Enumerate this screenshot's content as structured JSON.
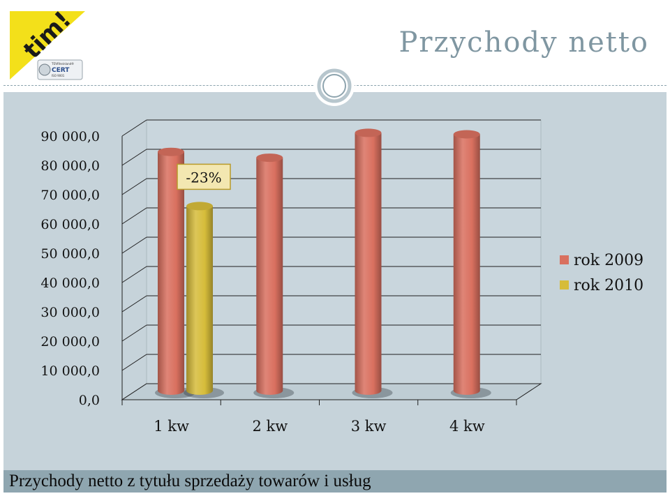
{
  "slide": {
    "title": "Przychody netto",
    "footer": "Przychody netto z tytułu sprzedaży towarów i usług"
  },
  "logo": {
    "brand_text": "tim!",
    "badge_line1": "TÜVRheinland®",
    "badge_line2": "CERT",
    "badge_line3": "ISO 9001",
    "colors": {
      "yellow": "#f3e01a",
      "dark": "#1a1a1a"
    }
  },
  "chart_data": {
    "type": "bar",
    "categories": [
      "1 kw",
      "2 kw",
      "3 kw",
      "4 kw"
    ],
    "series": [
      {
        "name": "rok 2009",
        "color": "#d9705f",
        "values": [
          81500,
          79500,
          88000,
          87500
        ]
      },
      {
        "name": "rok 2010",
        "color": "#d6bc3a",
        "values": [
          63000,
          null,
          null,
          null
        ]
      }
    ],
    "y_ticks": [
      "0,0",
      "10 000,0",
      "20 000,0",
      "30 000,0",
      "40 000,0",
      "50 000,0",
      "60 000,0",
      "70 000,0",
      "80 000,0",
      "90 000,0"
    ],
    "ylim": [
      0,
      90000
    ],
    "legend_position": "right",
    "annotation": {
      "text": "-23%",
      "category": "1 kw"
    },
    "style": "3d-cylinder",
    "grid": true
  }
}
